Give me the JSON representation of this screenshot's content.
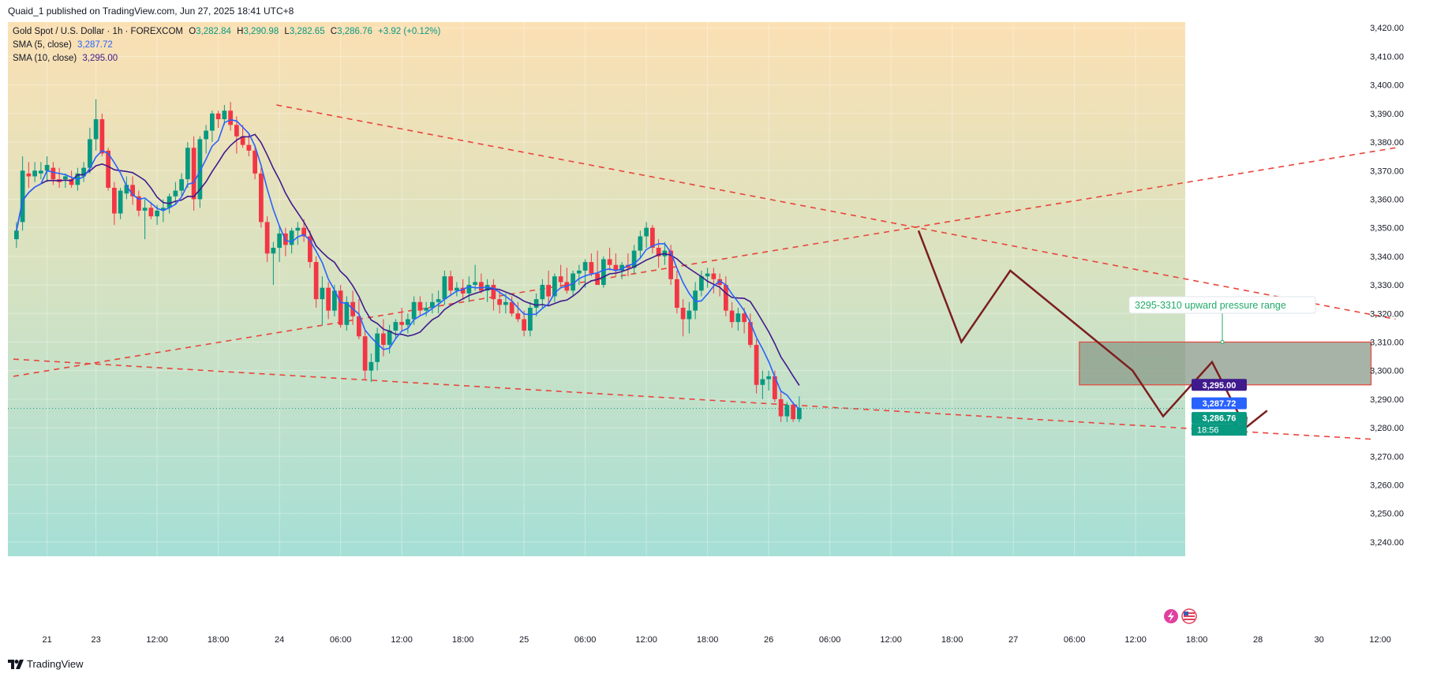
{
  "header": {
    "publish_info": "Quaid_1 published on TradingView.com, Jun 27, 2025 18:41 UTC+8"
  },
  "footer": {
    "brand": "TradingView"
  },
  "legend": {
    "symbol": "Gold Spot / U.S. Dollar · 1h · FOREXCOM",
    "o_label": "O",
    "o_value": "3,282.84",
    "h_label": "H",
    "h_value": "3,290.98",
    "l_label": "L",
    "l_value": "3,282.65",
    "c_label": "C",
    "c_value": "3,286.76",
    "change": "+3.92 (+0.12%)",
    "sma5_label": "SMA (5, close)",
    "sma5_value": "3,287.72",
    "sma10_label": "SMA (10, close)",
    "sma10_value": "3,295.00"
  },
  "price_tags": {
    "sma10": "3,295.00",
    "sma5": "3,287.72",
    "last": "3,286.76",
    "countdown": "18:56"
  },
  "annotation": {
    "text": "3295-3310 upward pressure range"
  },
  "colors": {
    "up": "#089981",
    "down": "#f23645",
    "sma5": "#2962ff",
    "sma10": "#3f1a8c",
    "trendline": "#e8453c",
    "arrow": "#7b1f1f",
    "zone": "#8a9a88",
    "label_green": "#22ab6a"
  },
  "chart_data": {
    "type": "candlestick",
    "timeframe": "1h",
    "ylim": [
      3235,
      3422
    ],
    "y_ticks": [
      3240,
      3250,
      3260,
      3270,
      3280,
      3290,
      3300,
      3310,
      3320,
      3330,
      3340,
      3350,
      3360,
      3370,
      3380,
      3390,
      3400,
      3410,
      3420
    ],
    "y_tick_labels": [
      "3,240.00",
      "3,250.00",
      "3,260.00",
      "3,270.00",
      "3,280.00",
      "3,290.00",
      "3,300.00",
      "3,310.00",
      "3,320.00",
      "3,330.00",
      "3,340.00",
      "3,350.00",
      "3,360.00",
      "3,370.00",
      "3,380.00",
      "3,390.00",
      "3,400.00",
      "3,410.00",
      "3,420.00"
    ],
    "x_ticks": [
      {
        "i": 5.5,
        "label": "21"
      },
      {
        "i": 13.5,
        "label": "23"
      },
      {
        "i": 23.5,
        "label": "12:00"
      },
      {
        "i": 33.5,
        "label": "18:00"
      },
      {
        "i": 43.5,
        "label": "24"
      },
      {
        "i": 53.5,
        "label": "06:00"
      },
      {
        "i": 63.5,
        "label": "12:00"
      },
      {
        "i": 73.5,
        "label": "18:00"
      },
      {
        "i": 83.5,
        "label": "25"
      },
      {
        "i": 93.5,
        "label": "06:00"
      },
      {
        "i": 103.5,
        "label": "12:00"
      },
      {
        "i": 113.5,
        "label": "18:00"
      },
      {
        "i": 123.5,
        "label": "26"
      },
      {
        "i": 133.5,
        "label": "06:00"
      },
      {
        "i": 143.5,
        "label": "12:00"
      },
      {
        "i": 153.5,
        "label": "18:00"
      },
      {
        "i": 163.5,
        "label": "27"
      },
      {
        "i": 173.5,
        "label": "06:00"
      },
      {
        "i": 183.5,
        "label": "12:00"
      },
      {
        "i": 193.5,
        "label": "18:00"
      },
      {
        "i": 203.5,
        "label": "28"
      },
      {
        "i": 213.5,
        "label": "30"
      },
      {
        "i": 223.5,
        "label": "12:00"
      }
    ],
    "candles": [
      [
        3346,
        3352,
        3343,
        3349
      ],
      [
        3352,
        3375,
        3349,
        3370
      ],
      [
        3369,
        3373,
        3364,
        3368
      ],
      [
        3368,
        3373,
        3366,
        3370
      ],
      [
        3369,
        3373,
        3367,
        3370
      ],
      [
        3370,
        3375,
        3366,
        3372
      ],
      [
        3371,
        3373,
        3365,
        3367
      ],
      [
        3367,
        3371,
        3364,
        3366
      ],
      [
        3367,
        3369,
        3364,
        3368
      ],
      [
        3367,
        3370,
        3364,
        3365
      ],
      [
        3365,
        3371,
        3363,
        3369
      ],
      [
        3368,
        3373,
        3366,
        3371
      ],
      [
        3371,
        3385,
        3369,
        3381
      ],
      [
        3381,
        3395,
        3377,
        3388
      ],
      [
        3388,
        3390,
        3375,
        3376
      ],
      [
        3377,
        3378,
        3363,
        3364
      ],
      [
        3364,
        3366,
        3351,
        3355
      ],
      [
        3355,
        3364,
        3353,
        3363
      ],
      [
        3362,
        3368,
        3360,
        3365
      ],
      [
        3365,
        3368,
        3358,
        3361
      ],
      [
        3361,
        3363,
        3354,
        3356
      ],
      [
        3356,
        3360,
        3346,
        3357
      ],
      [
        3357,
        3359,
        3353,
        3354
      ],
      [
        3354,
        3358,
        3351,
        3356
      ],
      [
        3356,
        3360,
        3352,
        3357
      ],
      [
        3357,
        3362,
        3355,
        3361
      ],
      [
        3361,
        3366,
        3358,
        3363
      ],
      [
        3363,
        3369,
        3361,
        3367
      ],
      [
        3367,
        3380,
        3364,
        3378
      ],
      [
        3378,
        3382,
        3356,
        3360
      ],
      [
        3360,
        3382,
        3357,
        3381
      ],
      [
        3381,
        3386,
        3376,
        3384
      ],
      [
        3384,
        3391,
        3380,
        3390
      ],
      [
        3390,
        3391,
        3385,
        3388
      ],
      [
        3388,
        3393,
        3386,
        3391
      ],
      [
        3391,
        3394,
        3384,
        3386
      ],
      [
        3386,
        3389,
        3376,
        3382
      ],
      [
        3382,
        3386,
        3378,
        3379
      ],
      [
        3379,
        3383,
        3375,
        3377
      ],
      [
        3377,
        3379,
        3367,
        3369
      ],
      [
        3369,
        3371,
        3350,
        3352
      ],
      [
        3352,
        3354,
        3338,
        3341
      ],
      [
        3341,
        3345,
        3330,
        3343
      ],
      [
        3343,
        3351,
        3338,
        3348
      ],
      [
        3348,
        3350,
        3340,
        3344
      ],
      [
        3344,
        3350,
        3341,
        3349
      ],
      [
        3349,
        3352,
        3344,
        3350
      ],
      [
        3350,
        3353,
        3345,
        3347
      ],
      [
        3347,
        3349,
        3336,
        3338
      ],
      [
        3338,
        3340,
        3322,
        3325
      ],
      [
        3325,
        3333,
        3316,
        3329
      ],
      [
        3329,
        3331,
        3318,
        3321
      ],
      [
        3321,
        3330,
        3319,
        3328
      ],
      [
        3328,
        3330,
        3315,
        3316
      ],
      [
        3316,
        3326,
        3314,
        3324
      ],
      [
        3324,
        3328,
        3316,
        3319
      ],
      [
        3319,
        3325,
        3311,
        3312
      ],
      [
        3312,
        3314,
        3297,
        3300
      ],
      [
        3300,
        3306,
        3296,
        3303
      ],
      [
        3303,
        3315,
        3300,
        3313
      ],
      [
        3313,
        3318,
        3305,
        3309
      ],
      [
        3309,
        3316,
        3306,
        3314
      ],
      [
        3314,
        3318,
        3311,
        3317
      ],
      [
        3317,
        3322,
        3314,
        3316
      ],
      [
        3316,
        3320,
        3313,
        3318
      ],
      [
        3318,
        3326,
        3316,
        3324
      ],
      [
        3324,
        3326,
        3319,
        3321
      ],
      [
        3321,
        3324,
        3319,
        3322
      ],
      [
        3322,
        3327,
        3320,
        3324
      ],
      [
        3324,
        3328,
        3320,
        3325
      ],
      [
        3325,
        3335,
        3323,
        3333
      ],
      [
        3333,
        3335,
        3326,
        3328
      ],
      [
        3328,
        3331,
        3326,
        3329
      ],
      [
        3329,
        3332,
        3325,
        3327
      ],
      [
        3327,
        3333,
        3324,
        3330
      ],
      [
        3330,
        3337,
        3328,
        3331
      ],
      [
        3331,
        3334,
        3327,
        3328
      ],
      [
        3328,
        3332,
        3324,
        3330
      ],
      [
        3330,
        3332,
        3321,
        3325
      ],
      [
        3325,
        3328,
        3320,
        3323
      ],
      [
        3323,
        3327,
        3320,
        3324
      ],
      [
        3324,
        3326,
        3319,
        3320
      ],
      [
        3320,
        3324,
        3317,
        3318
      ],
      [
        3318,
        3321,
        3312,
        3314
      ],
      [
        3314,
        3324,
        3312,
        3322
      ],
      [
        3322,
        3327,
        3319,
        3325
      ],
      [
        3325,
        3332,
        3322,
        3330
      ],
      [
        3330,
        3335,
        3323,
        3326
      ],
      [
        3326,
        3334,
        3324,
        3333
      ],
      [
        3333,
        3337,
        3329,
        3331
      ],
      [
        3331,
        3336,
        3327,
        3328
      ],
      [
        3328,
        3335,
        3326,
        3334
      ],
      [
        3334,
        3337,
        3330,
        3335
      ],
      [
        3335,
        3339,
        3329,
        3338
      ],
      [
        3338,
        3341,
        3333,
        3334
      ],
      [
        3334,
        3342,
        3330,
        3330
      ],
      [
        3330,
        3340,
        3329,
        3339
      ],
      [
        3339,
        3343,
        3335,
        3337
      ],
      [
        3337,
        3341,
        3333,
        3335
      ],
      [
        3335,
        3338,
        3332,
        3337
      ],
      [
        3337,
        3341,
        3333,
        3336
      ],
      [
        3336,
        3344,
        3334,
        3342
      ],
      [
        3342,
        3349,
        3339,
        3347
      ],
      [
        3347,
        3352,
        3343,
        3350
      ],
      [
        3350,
        3351,
        3341,
        3343
      ],
      [
        3343,
        3346,
        3336,
        3340
      ],
      [
        3340,
        3345,
        3337,
        3342
      ],
      [
        3342,
        3344,
        3330,
        3332
      ],
      [
        3332,
        3335,
        3320,
        3322
      ],
      [
        3322,
        3325,
        3312,
        3318
      ],
      [
        3318,
        3324,
        3313,
        3321
      ],
      [
        3321,
        3331,
        3318,
        3328
      ],
      [
        3328,
        3335,
        3326,
        3333
      ],
      [
        3333,
        3336,
        3329,
        3334
      ],
      [
        3334,
        3336,
        3327,
        3332
      ],
      [
        3332,
        3334,
        3326,
        3330
      ],
      [
        3330,
        3333,
        3319,
        3321
      ],
      [
        3321,
        3324,
        3315,
        3317
      ],
      [
        3317,
        3322,
        3314,
        3320
      ],
      [
        3320,
        3322,
        3313,
        3317
      ],
      [
        3317,
        3320,
        3308,
        3309
      ],
      [
        3309,
        3311,
        3292,
        3295
      ],
      [
        3295,
        3300,
        3290,
        3297
      ],
      [
        3297,
        3300,
        3293,
        3298
      ],
      [
        3298,
        3300,
        3289,
        3290
      ],
      [
        3290,
        3293,
        3282,
        3284
      ],
      [
        3284,
        3289,
        3282,
        3288
      ],
      [
        3288,
        3289,
        3282,
        3283
      ],
      [
        3283,
        3291,
        3282,
        3287
      ]
    ],
    "sma5_color": "#2962ff",
    "sma10_color": "#3f1a8c",
    "trendlines": [
      {
        "from": [
          43,
          3393
        ],
        "to": [
          226,
          3318
        ],
        "style": "dashed"
      },
      {
        "from": [
          0,
          3298
        ],
        "to": [
          226,
          3378
        ],
        "style": "dashed"
      },
      {
        "from": [
          0,
          3304
        ],
        "to": [
          222,
          3276
        ],
        "style": "dashed"
      }
    ],
    "zone": {
      "from_i": 174.3,
      "to_i": 222,
      "y_low": 3295,
      "y_high": 3310,
      "label": "3295-3310 upward pressure range"
    },
    "projection_path": [
      [
        148,
        3349
      ],
      [
        155,
        3310
      ],
      [
        163,
        3335
      ],
      [
        183,
        3300
      ],
      [
        188,
        3284
      ],
      [
        196,
        3303
      ],
      [
        201.5,
        3280
      ],
      [
        205,
        3286
      ]
    ],
    "arrow_head_at": [
      201.5,
      3280
    ],
    "current_price": 3286.76
  }
}
